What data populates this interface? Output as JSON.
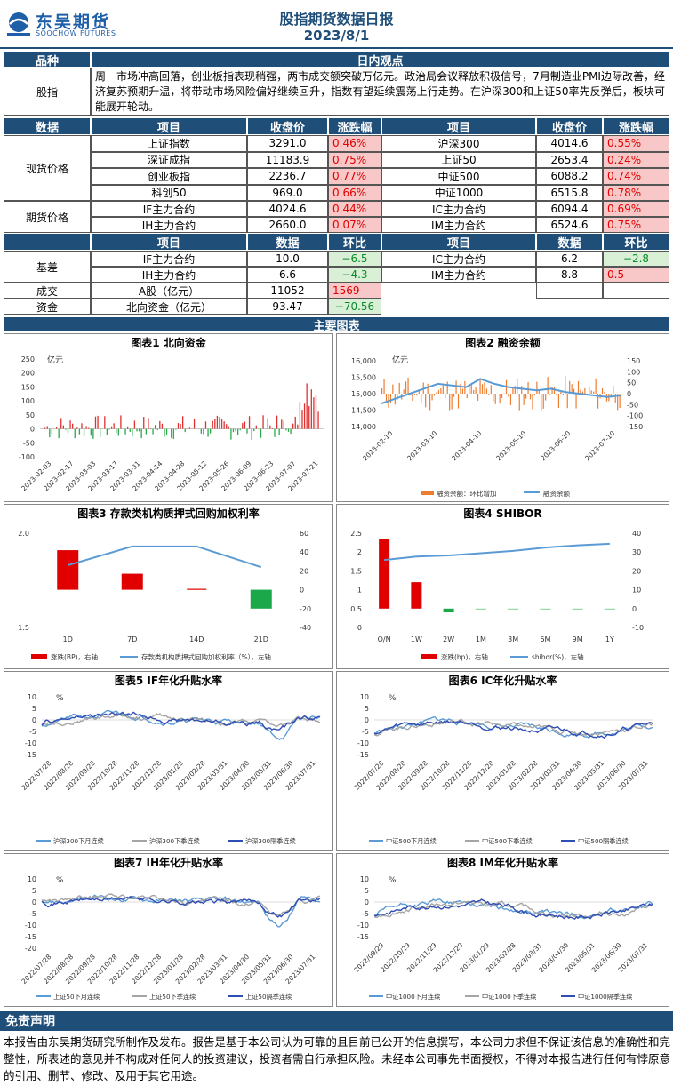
{
  "header": {
    "logo_cn": "东吴期货",
    "logo_en": "SOOCHOW FUTURES",
    "logo_abbr": "SCF",
    "title": "股指期货数据日报",
    "date": "2023/8/1"
  },
  "view": {
    "col1": "品种",
    "col2": "日内观点",
    "label": "股指",
    "text": "周一市场冲高回落，创业板指表现稍强，两市成交额突破万亿元。政治局会议释放积极信号，7月制造业PMI边际改善，经济复苏预期升温，将带动市场风险偏好继续回升，指数有望延续震荡上行走势。在沪深300和上证50率先反弹后，板块可能展开轮动。"
  },
  "price_header": {
    "c1": "数据",
    "c2": "项目",
    "c3": "收盘价",
    "c4": "涨跌幅",
    "c5": "项目",
    "c6": "收盘价",
    "c7": "涨跌幅"
  },
  "spot_label": "现货价格",
  "spot": [
    {
      "n1": "上证指数",
      "v1": "3291.0",
      "p1": "0.46%",
      "n2": "沪深300",
      "v2": "4014.6",
      "p2": "0.55%"
    },
    {
      "n1": "深证成指",
      "v1": "11183.9",
      "p1": "0.75%",
      "n2": "上证50",
      "v2": "2653.4",
      "p2": "0.24%"
    },
    {
      "n1": "创业板指",
      "v1": "2236.7",
      "p1": "0.77%",
      "n2": "中证500",
      "v2": "6088.2",
      "p2": "0.74%"
    },
    {
      "n1": "科创50",
      "v1": "969.0",
      "p1": "0.66%",
      "n2": "中证1000",
      "v2": "6515.8",
      "p2": "0.78%"
    }
  ],
  "fut_label": "期货价格",
  "futures": [
    {
      "n1": "IF主力合约",
      "v1": "4024.6",
      "p1": "0.44%",
      "n2": "IC主力合约",
      "v2": "6094.4",
      "p2": "0.69%"
    },
    {
      "n1": "IH主力合约",
      "v1": "2660.0",
      "p1": "0.07%",
      "n2": "IM主力合约",
      "v2": "6524.6",
      "p2": "0.75%"
    }
  ],
  "basis_header": {
    "c2": "项目",
    "c3": "数据",
    "c4": "环比",
    "c5": "项目",
    "c6": "数据",
    "c7": "环比"
  },
  "basis_label": "基差",
  "basis": [
    {
      "n1": "IF主力合约",
      "v1": "10.0",
      "p1": "−6.5",
      "n2": "IC主力合约",
      "v2": "6.2",
      "p2": "−2.8"
    },
    {
      "n1": "IH主力合约",
      "v1": "6.6",
      "p1": "−4.3",
      "n2": "IM主力合约",
      "v2": "8.8",
      "p2": "0.5"
    }
  ],
  "volume": {
    "label": "成交",
    "item": "A股（亿元）",
    "value": "11052",
    "chg": "1569"
  },
  "fund": {
    "label": "资金",
    "item": "北向资金（亿元）",
    "value": "93.47",
    "chg": "−70.56"
  },
  "charts_bar": "主要图表",
  "chart1": {
    "title": "图表1 北向资金",
    "unit": "亿元",
    "yticks": [
      "250",
      "200",
      "150",
      "100",
      "50",
      "0",
      "-50",
      "-100"
    ],
    "xticks": [
      "2023-02-03",
      "2023-02-17",
      "2023-03-03",
      "2023-03-17",
      "2023-03-31",
      "2023-04-14",
      "2023-04-28",
      "2023-05-12",
      "2023-05-26",
      "2023-06-09",
      "2023-06-23",
      "2023-07-07",
      "2023-07-21"
    ]
  },
  "chart2": {
    "title": "图表2 融资余额",
    "unit": "亿元",
    "yticks": [
      "16,000",
      "15,500",
      "15,000",
      "14,500",
      "14,000"
    ],
    "y2ticks": [
      "150",
      "100",
      "50",
      "0",
      "-50",
      "-100",
      "-150"
    ],
    "xticks": [
      "2023-02-10",
      "2023-03-10",
      "2023-04-10",
      "2023-05-10",
      "2023-06-10",
      "2023-07-10"
    ],
    "legend1": "融资余额：环比增加",
    "legend2": "融资余额"
  },
  "chart3": {
    "title": "图表3 存款类机构质押式回购加权利率",
    "yticks": [
      "2.0",
      "1.5"
    ],
    "y2ticks": [
      "60",
      "40",
      "20",
      "0",
      "-20",
      "-40"
    ],
    "xticks": [
      "1D",
      "7D",
      "14D",
      "21D"
    ],
    "legend1": "涨跌(BP)，右轴",
    "legend2": "存款类机构质押式回购加权利率（%），左轴"
  },
  "chart4": {
    "title": "图表4 SHIBOR",
    "yticks": [
      "2.5",
      "2",
      "1.5",
      "1",
      "0.5",
      "0"
    ],
    "y2ticks": [
      "40",
      "30",
      "20",
      "10",
      "0",
      "-10"
    ],
    "xticks": [
      "O/N",
      "1W",
      "2W",
      "1M",
      "3M",
      "6M",
      "9M",
      "1Y"
    ],
    "legend1": "涨跌(bp)，右轴",
    "legend2": "shibor(%)，左轴"
  },
  "chart5": {
    "title": "图表5 IF年化升贴水率",
    "unit": "%",
    "yticks": [
      "10",
      "5",
      "0",
      "-5",
      "-10",
      "-15"
    ],
    "xticks": [
      "2022/07/28",
      "2022/08/28",
      "2022/09/28",
      "2022/10/28",
      "2022/11/28",
      "2022/12/28",
      "2023/01/28",
      "2023/02/28",
      "2023/03/31",
      "2023/04/30",
      "2023/05/31",
      "2023/06/30",
      "2023/07/31"
    ],
    "legend": [
      "沪深300下月连续",
      "沪深300下季连续",
      "沪深300隔季连续"
    ]
  },
  "chart6": {
    "title": "图表6 IC年化升贴水率",
    "unit": "%",
    "yticks": [
      "10",
      "5",
      "0",
      "-5",
      "-10",
      "-15"
    ],
    "xticks": [
      "2022/07/28",
      "2022/08/28",
      "2022/09/28",
      "2022/10/28",
      "2022/11/28",
      "2022/12/28",
      "2023/01/28",
      "2023/02/28",
      "2023/03/31",
      "2023/04/30",
      "2023/05/31",
      "2023/06/30",
      "2023/07/31"
    ],
    "legend": [
      "中证500下月连续",
      "中证500下季连续",
      "中证500隔季连续"
    ]
  },
  "chart7": {
    "title": "图表7 IH年化升贴水率",
    "unit": "%",
    "yticks": [
      "10",
      "5",
      "0",
      "-5",
      "-10",
      "-15",
      "-20"
    ],
    "xticks": [
      "2022/07/28",
      "2022/08/28",
      "2022/09/28",
      "2022/10/28",
      "2022/11/28",
      "2022/12/28",
      "2023/01/28",
      "2023/02/28",
      "2023/03/31",
      "2023/04/30",
      "2023/05/31",
      "2023/06/30",
      "2023/07/31"
    ],
    "legend": [
      "上证50下月连续",
      "上证50下季连续",
      "上证50隔季连续"
    ]
  },
  "chart8": {
    "title": "图表8 IM年化升贴水率",
    "unit": "%",
    "yticks": [
      "10",
      "5",
      "0",
      "-5",
      "-10",
      "-15"
    ],
    "xticks": [
      "2022/09/29",
      "2022/10/29",
      "2022/11/29",
      "2022/12/29",
      "2023/01/29",
      "2023/02/28",
      "2023/03/31",
      "2023/04/30",
      "2023/05/31",
      "2023/06/30",
      "2023/07/31"
    ],
    "legend": [
      "中证1000下月连续",
      "中证1000下季连续",
      "中证1000隔季连续"
    ]
  },
  "disclaimer": {
    "title": "免责声明",
    "text": "本报告由东吴期货研究所制作及发布。报告是基于本公司认为可靠的且目前已公开的信息撰写，本公司力求但不保证该信息的准确性和完整性，所表述的意见并不构成对任何人的投资建议，投资者需自行承担风险。未经本公司事先书面授权，不得对本报告进行任何有悖原意的引用、删节、修改、及用于其它用途。"
  },
  "colors": {
    "navy": "#1f4e79",
    "red_bg": "#f8c7c7",
    "red": "#e00000",
    "green_bg": "#d9f0d6",
    "green": "#0a8a2a",
    "line_blue": "#5b9bd5",
    "bar_orange": "#ed7d31"
  },
  "chart_data": [
    {
      "type": "bar",
      "title": "图表1 北向资金",
      "ylabel": "亿元",
      "ylim": [
        -100,
        250
      ],
      "note": "daily northbound flow, range approx -60 to 190"
    },
    {
      "type": "line",
      "title": "图表2 融资余额",
      "ylabel": "亿元",
      "ylim": [
        14000,
        16000
      ],
      "series": [
        {
          "name": "融资余额",
          "values": [
            14700,
            14900,
            15200,
            15300,
            15400,
            15200,
            15100,
            15100,
            15000,
            14900
          ]
        },
        {
          "name": "融资余额：环比增加",
          "values": []
        }
      ]
    },
    {
      "type": "bar",
      "title": "图表3 存款类机构质押式回购加权利率",
      "categories": [
        "1D",
        "7D",
        "14D",
        "21D"
      ],
      "series": [
        {
          "name": "涨跌(BP)，右轴",
          "values": [
            42,
            17,
            1,
            -20
          ]
        },
        {
          "name": "存款类机构质押式回购加权利率（%），左轴",
          "values": [
            1.83,
            1.93,
            1.93,
            1.82
          ]
        }
      ]
    },
    {
      "type": "bar",
      "title": "图表4 SHIBOR",
      "categories": [
        "O/N",
        "1W",
        "2W",
        "1M",
        "3M",
        "6M",
        "9M",
        "1Y"
      ],
      "series": [
        {
          "name": "涨跌(bp)，右轴",
          "values": [
            37,
            14,
            -2,
            0,
            0,
            0,
            0,
            0
          ]
        },
        {
          "name": "shibor(%)，左轴",
          "values": [
            1.79,
            1.88,
            1.91,
            1.97,
            2.03,
            2.12,
            2.18,
            2.22
          ]
        }
      ]
    }
  ]
}
